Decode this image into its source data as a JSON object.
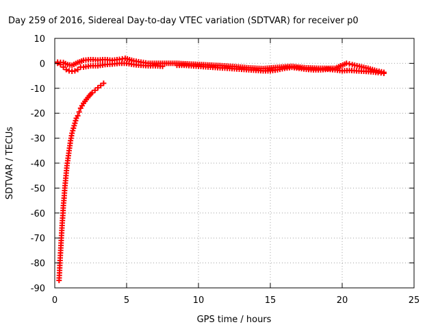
{
  "chart_data": {
    "type": "scatter",
    "title": "Day 259 of 2016, Sidereal Day-to-day VTEC variation (SDTVAR) for receiver p0",
    "xlabel": "GPS time / hours",
    "ylabel": "SDTVAR / TECUs",
    "xlim": [
      0,
      25
    ],
    "ylim": [
      -90,
      10
    ],
    "grid": true,
    "x_ticks": [
      0,
      5,
      10,
      15,
      20,
      25
    ],
    "y_ticks": [
      10,
      0,
      -10,
      -20,
      -30,
      -40,
      -50,
      -60,
      -70,
      -80,
      -90
    ],
    "marker": "plus",
    "series": [
      {
        "name": "recovery-arc",
        "color": "#ff0000",
        "points": [
          [
            0.3,
            -87
          ],
          [
            0.33,
            -84
          ],
          [
            0.36,
            -80
          ],
          [
            0.4,
            -76
          ],
          [
            0.44,
            -72
          ],
          [
            0.48,
            -68
          ],
          [
            0.52,
            -64
          ],
          [
            0.56,
            -61
          ],
          [
            0.6,
            -57
          ],
          [
            0.65,
            -54
          ],
          [
            0.7,
            -50
          ],
          [
            0.75,
            -47
          ],
          [
            0.8,
            -44
          ],
          [
            0.85,
            -41
          ],
          [
            0.9,
            -39
          ],
          [
            0.95,
            -37
          ],
          [
            1.0,
            -35
          ],
          [
            1.05,
            -33
          ],
          [
            1.1,
            -31
          ],
          [
            1.2,
            -28
          ],
          [
            1.3,
            -26
          ],
          [
            1.4,
            -24
          ],
          [
            1.5,
            -22
          ],
          [
            1.6,
            -21
          ],
          [
            1.7,
            -19.5
          ],
          [
            1.8,
            -18
          ],
          [
            1.9,
            -17
          ],
          [
            2.0,
            -16
          ],
          [
            2.2,
            -14.5
          ],
          [
            2.4,
            -13
          ],
          [
            2.6,
            -11.8
          ],
          [
            2.8,
            -10.8
          ],
          [
            3.0,
            -9.8
          ],
          [
            3.2,
            -8.9
          ],
          [
            3.4,
            -8
          ]
        ]
      },
      {
        "name": "main-trace",
        "color": "#ff0000",
        "points": [
          [
            0.2,
            0
          ],
          [
            0.4,
            -0.5
          ],
          [
            0.6,
            -1.5
          ],
          [
            0.8,
            -2.5
          ],
          [
            1.0,
            -3
          ],
          [
            1.2,
            -3.2
          ],
          [
            1.4,
            -3
          ],
          [
            1.6,
            -2.5
          ],
          [
            1.8,
            -1.5
          ],
          [
            2.0,
            -1.5
          ],
          [
            2.5,
            -1
          ],
          [
            3.0,
            -1
          ],
          [
            3.5,
            -0.5
          ],
          [
            4.0,
            -0.3
          ],
          [
            4.5,
            0
          ],
          [
            5.0,
            0
          ],
          [
            5.5,
            -0.5
          ],
          [
            6.0,
            -0.8
          ],
          [
            6.5,
            -1
          ],
          [
            7.0,
            -1
          ],
          [
            7.5,
            -1.2
          ],
          [
            8.5,
            -0.8
          ],
          [
            9.0,
            -0.8
          ],
          [
            9.5,
            -1
          ],
          [
            10.0,
            -1.2
          ],
          [
            10.5,
            -1.4
          ],
          [
            11.0,
            -1.6
          ],
          [
            11.5,
            -1.8
          ],
          [
            12.0,
            -2
          ],
          [
            12.5,
            -2.2
          ],
          [
            13.0,
            -2.4
          ],
          [
            13.5,
            -2.6
          ],
          [
            14.0,
            -2.8
          ],
          [
            14.5,
            -3
          ],
          [
            15.0,
            -3
          ],
          [
            15.5,
            -2.6
          ],
          [
            16.0,
            -2
          ],
          [
            16.5,
            -1.6
          ],
          [
            17.0,
            -2
          ],
          [
            17.5,
            -2.4
          ],
          [
            18.0,
            -2.6
          ],
          [
            18.5,
            -2.6
          ],
          [
            19.0,
            -2.4
          ],
          [
            19.5,
            -2.6
          ],
          [
            20.0,
            -3
          ],
          [
            20.5,
            -2.8
          ],
          [
            21.0,
            -3
          ],
          [
            21.5,
            -3.2
          ],
          [
            22.0,
            -3.4
          ],
          [
            22.5,
            -3.7
          ],
          [
            22.9,
            -4
          ]
        ]
      },
      {
        "name": "upper-band",
        "color": "#ff0000",
        "points": [
          [
            0.2,
            0.5
          ],
          [
            0.6,
            0.3
          ],
          [
            0.9,
            -0.5
          ],
          [
            1.2,
            -0.8
          ],
          [
            1.6,
            0.3
          ],
          [
            2.0,
            1.2
          ],
          [
            2.5,
            1.5
          ],
          [
            3.0,
            1.3
          ],
          [
            3.5,
            1.5
          ],
          [
            4.0,
            1.2
          ],
          [
            4.5,
            1.6
          ],
          [
            4.9,
            2
          ],
          [
            5.5,
            1
          ],
          [
            6.0,
            0.5
          ],
          [
            6.5,
            0
          ],
          [
            8.5,
            0
          ],
          [
            9.5,
            -0.3
          ],
          [
            10.5,
            -0.6
          ],
          [
            11.5,
            -0.9
          ],
          [
            12.5,
            -1.3
          ],
          [
            13.5,
            -1.8
          ],
          [
            14.5,
            -2.1
          ],
          [
            15.5,
            -1.6
          ],
          [
            16.5,
            -1.2
          ],
          [
            17.5,
            -1.8
          ],
          [
            18.5,
            -2
          ],
          [
            19.5,
            -2
          ],
          [
            20.3,
            0
          ],
          [
            20.7,
            -0.5
          ],
          [
            21.2,
            -1.2
          ],
          [
            21.8,
            -2
          ],
          [
            22.4,
            -3
          ],
          [
            22.9,
            -3.6
          ]
        ]
      }
    ]
  }
}
